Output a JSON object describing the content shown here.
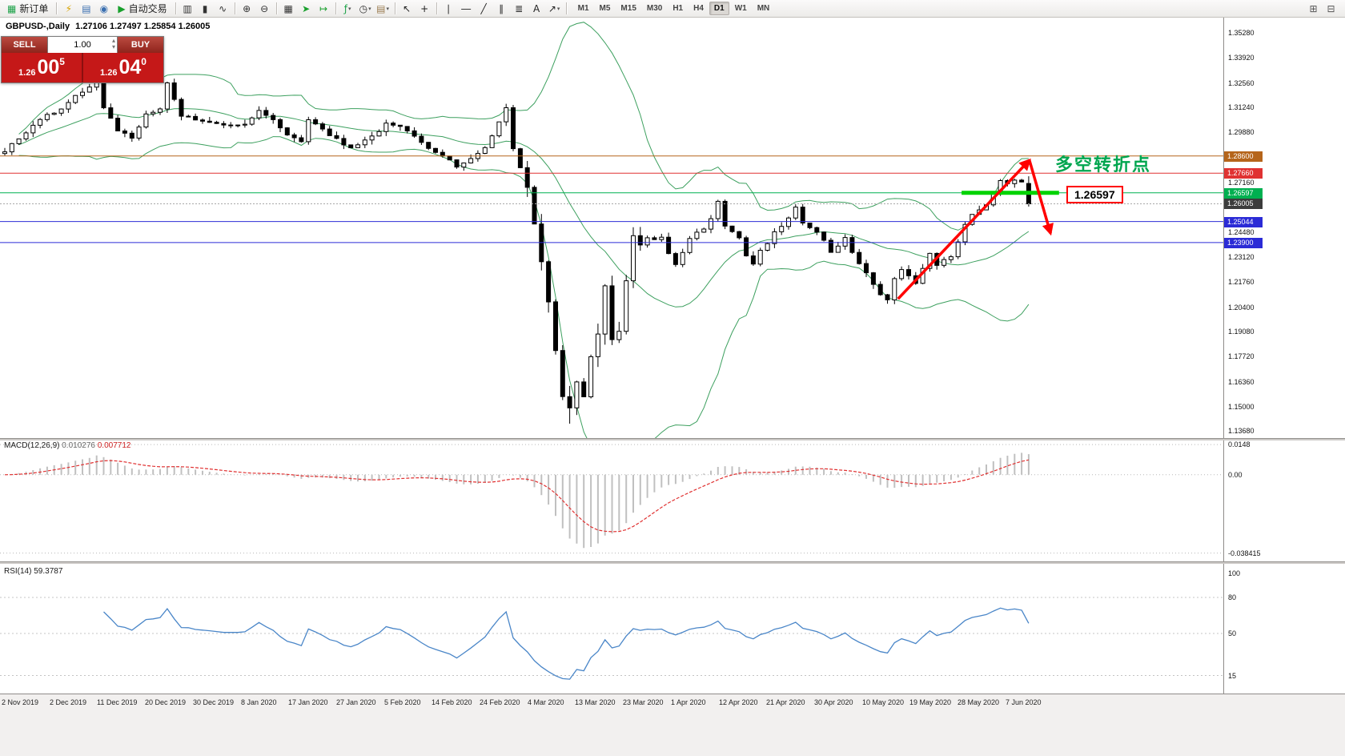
{
  "toolbar": {
    "items": [
      {
        "type": "btn",
        "name": "new-order-button",
        "glyph": "▦",
        "glyph_color": "#1fa34a",
        "label": "新订单"
      },
      {
        "type": "sep"
      },
      {
        "type": "icon",
        "name": "profiles-icon",
        "glyph": "⚡",
        "glyph_color": "#d9a400"
      },
      {
        "type": "icon",
        "name": "market-watch-icon",
        "glyph": "▤",
        "glyph_color": "#3a6fb0"
      },
      {
        "type": "icon",
        "name": "data-window-icon",
        "glyph": "◉",
        "glyph_color": "#3a6fb0"
      },
      {
        "type": "btn",
        "name": "autotrading-button",
        "glyph": "▶",
        "glyph_color": "#18a02c",
        "label": "自动交易"
      },
      {
        "type": "sep"
      },
      {
        "type": "icon",
        "name": "bar-chart-icon",
        "glyph": "▥",
        "glyph_color": "#333333"
      },
      {
        "type": "icon",
        "name": "candlestick-chart-icon",
        "glyph": "▮",
        "glyph_color": "#333333"
      },
      {
        "type": "icon",
        "name": "line-chart-icon",
        "glyph": "∿",
        "glyph_color": "#333333"
      },
      {
        "type": "sep"
      },
      {
        "type": "icon",
        "name": "zoom-in-icon",
        "glyph": "⊕",
        "glyph_color": "#333333"
      },
      {
        "type": "icon",
        "name": "zoom-out-icon",
        "glyph": "⊖",
        "glyph_color": "#333333"
      },
      {
        "type": "sep"
      },
      {
        "type": "icon",
        "name": "tile-windows-icon",
        "glyph": "▦",
        "glyph_color": "#333333"
      },
      {
        "type": "icon",
        "name": "auto-scroll-icon",
        "glyph": "➤",
        "glyph_color": "#18a02c"
      },
      {
        "type": "icon",
        "name": "chart-shift-icon",
        "glyph": "↦",
        "glyph_color": "#18a02c"
      },
      {
        "type": "sep"
      },
      {
        "type": "icon",
        "name": "indicators-icon",
        "glyph": "ƒ",
        "glyph_color": "#1fa34a",
        "caret": true
      },
      {
        "type": "icon",
        "name": "periods-icon",
        "glyph": "◷",
        "glyph_color": "#333333",
        "caret": true
      },
      {
        "type": "icon",
        "name": "templates-icon",
        "glyph": "▤",
        "glyph_color": "#9a7b4f",
        "caret": true
      },
      {
        "type": "sep"
      },
      {
        "type": "icon",
        "name": "cursor-icon",
        "glyph": "↖",
        "glyph_color": "#222222"
      },
      {
        "type": "icon",
        "name": "crosshair-icon",
        "glyph": "+",
        "glyph_color": "#222222"
      },
      {
        "type": "sep"
      },
      {
        "type": "icon",
        "name": "vertical-line-icon",
        "glyph": "∣",
        "glyph_color": "#222222"
      },
      {
        "type": "icon",
        "name": "horizontal-line-icon",
        "glyph": "―",
        "glyph_color": "#222222"
      },
      {
        "type": "icon",
        "name": "trendline-icon",
        "glyph": "╱",
        "glyph_color": "#222222"
      },
      {
        "type": "icon",
        "name": "equidistant-channel-icon",
        "glyph": "∥",
        "glyph_color": "#222222"
      },
      {
        "type": "icon",
        "name": "fibonacci-icon",
        "glyph": "≣",
        "glyph_color": "#222222"
      },
      {
        "type": "icon",
        "name": "text-icon",
        "glyph": "A",
        "glyph_color": "#222222"
      },
      {
        "type": "icon",
        "name": "arrows-icon",
        "glyph": "↗",
        "glyph_color": "#222222",
        "caret": true
      },
      {
        "type": "sep"
      }
    ],
    "timeframes": [
      "M1",
      "M5",
      "M15",
      "M30",
      "H1",
      "H4",
      "D1",
      "W1",
      "MN"
    ],
    "active_timeframe": "D1",
    "right_items": [
      {
        "name": "print-icon",
        "glyph": "⊞",
        "glyph_color": "#555555"
      },
      {
        "name": "print-preview-icon",
        "glyph": "⊟",
        "glyph_color": "#555555"
      }
    ]
  },
  "one_click": {
    "sell_label": "SELL",
    "buy_label": "BUY",
    "volume": "1.00",
    "bid_prefix": "1.26",
    "bid_big": "00",
    "bid_sup": "5",
    "ask_prefix": "1.26",
    "ask_big": "04",
    "ask_sup": "0"
  },
  "chart": {
    "title": "GBPUSD-,Daily",
    "ohlc": "1.27106 1.27497 1.25854 1.26005",
    "annotation_text": "多空转折点",
    "level_label": "1.26597",
    "price_axis_labels": [
      "1.35280",
      "1.33920",
      "1.32560",
      "1.31240",
      "1.29880",
      "1.27160",
      "1.24480",
      "1.23120",
      "1.21760",
      "1.20400",
      "1.19080",
      "1.17720",
      "1.16360",
      "1.15000",
      "1.13680"
    ],
    "price_tags": [
      {
        "text": "1.28600",
        "value": 1.286,
        "bg": "#b5651b",
        "line_color": "#b5651b",
        "line_dash": ""
      },
      {
        "text": "1.27660",
        "value": 1.2766,
        "bg": "#e03232",
        "line_color": "#e03232",
        "line_dash": ""
      },
      {
        "text": "1.26597",
        "value": 1.26597,
        "bg": "#00b050",
        "line_color": "#00b050",
        "line_dash": ""
      },
      {
        "text": "1.26005",
        "value": 1.26005,
        "bg": "#3c3c3c",
        "line_color": "#a8a8a8",
        "line_dash": "2,2"
      },
      {
        "text": "1.25044",
        "value": 1.25044,
        "bg": "#2b2bd6",
        "line_color": "#2b2bd6",
        "line_dash": ""
      },
      {
        "text": "1.23900",
        "value": 1.239,
        "bg": "#2b2bd6",
        "line_color": "#2b2bd6",
        "line_dash": ""
      }
    ],
    "date_labels": [
      "2 Nov 2019",
      "2 Dec 2019",
      "11 Dec 2019",
      "20 Dec 2019",
      "30 Dec 2019",
      "8 Jan 2020",
      "17 Jan 2020",
      "27 Jan 2020",
      "5 Feb 2020",
      "14 Feb 2020",
      "24 Feb 2020",
      "4 Mar 2020",
      "13 Mar 2020",
      "23 Mar 2020",
      "1 Apr 2020",
      "12 Apr 2020",
      "21 Apr 2020",
      "30 Apr 2020",
      "10 May 2020",
      "19 May 2020",
      "28 May 2020",
      "7 Jun 2020"
    ]
  },
  "macd": {
    "name": "MACD(12,26,9)",
    "value_main": "0.010276",
    "value_signal": "0.007712",
    "axis_labels": [
      {
        "text": "0.0148",
        "value": 0.0148
      },
      {
        "text": "0.00",
        "value": 0
      },
      {
        "text": "-0.038415",
        "value": -0.038415
      }
    ]
  },
  "rsi": {
    "name": "RSI(14)",
    "value": "59.3787",
    "axis_labels": [
      {
        "text": "100",
        "value": 100
      },
      {
        "text": "80",
        "value": 80
      },
      {
        "text": "50",
        "value": 50
      },
      {
        "text": "15",
        "value": 15
      }
    ]
  },
  "chart_data": {
    "type": "candlestick",
    "symbol": "GBPUSD",
    "period": "Daily",
    "bar_count": 146,
    "close_anchors": [
      [
        0,
        1.289
      ],
      [
        2,
        1.295
      ],
      [
        5,
        1.306
      ],
      [
        8,
        1.312
      ],
      [
        10,
        1.318
      ],
      [
        12,
        1.324
      ],
      [
        13,
        1.333
      ],
      [
        14,
        1.312
      ],
      [
        16,
        1.3
      ],
      [
        18,
        1.296
      ],
      [
        20,
        1.308
      ],
      [
        22,
        1.311
      ],
      [
        23,
        1.325
      ],
      [
        25,
        1.308
      ],
      [
        28,
        1.305
      ],
      [
        31,
        1.302
      ],
      [
        34,
        1.303
      ],
      [
        36,
        1.31
      ],
      [
        38,
        1.306
      ],
      [
        40,
        1.298
      ],
      [
        42,
        1.293
      ],
      [
        43,
        1.305
      ],
      [
        45,
        1.3
      ],
      [
        47,
        1.295
      ],
      [
        49,
        1.29
      ],
      [
        52,
        1.296
      ],
      [
        54,
        1.304
      ],
      [
        56,
        1.302
      ],
      [
        58,
        1.296
      ],
      [
        60,
        1.29
      ],
      [
        62,
        1.286
      ],
      [
        64,
        1.28
      ],
      [
        66,
        1.285
      ],
      [
        68,
        1.29
      ],
      [
        70,
        1.305
      ],
      [
        71,
        1.312
      ],
      [
        72,
        1.29
      ],
      [
        73,
        1.28
      ],
      [
        74,
        1.268
      ],
      [
        75,
        1.251
      ],
      [
        76,
        1.228
      ],
      [
        77,
        1.208
      ],
      [
        78,
        1.18
      ],
      [
        79,
        1.155
      ],
      [
        80,
        1.148
      ],
      [
        81,
        1.162
      ],
      [
        82,
        1.157
      ],
      [
        83,
        1.177
      ],
      [
        84,
        1.19
      ],
      [
        85,
        1.214
      ],
      [
        86,
        1.188
      ],
      [
        87,
        1.193
      ],
      [
        88,
        1.218
      ],
      [
        89,
        1.243
      ],
      [
        90,
        1.236
      ],
      [
        91,
        1.241
      ],
      [
        92,
        1.239
      ],
      [
        93,
        1.242
      ],
      [
        94,
        1.233
      ],
      [
        95,
        1.227
      ],
      [
        96,
        1.234
      ],
      [
        97,
        1.241
      ],
      [
        98,
        1.245
      ],
      [
        99,
        1.247
      ],
      [
        100,
        1.252
      ],
      [
        101,
        1.262
      ],
      [
        102,
        1.248
      ],
      [
        104,
        1.242
      ],
      [
        105,
        1.232
      ],
      [
        106,
        1.228
      ],
      [
        107,
        1.234
      ],
      [
        109,
        1.244
      ],
      [
        111,
        1.253
      ],
      [
        112,
        1.259
      ],
      [
        113,
        1.249
      ],
      [
        115,
        1.245
      ],
      [
        117,
        1.234
      ],
      [
        119,
        1.241
      ],
      [
        120,
        1.234
      ],
      [
        122,
        1.223
      ],
      [
        124,
        1.211
      ],
      [
        125,
        1.208
      ],
      [
        126,
        1.219
      ],
      [
        127,
        1.224
      ],
      [
        129,
        1.217
      ],
      [
        131,
        1.234
      ],
      [
        132,
        1.226
      ],
      [
        134,
        1.232
      ],
      [
        136,
        1.248
      ],
      [
        137,
        1.255
      ],
      [
        139,
        1.26
      ],
      [
        140,
        1.267
      ],
      [
        141,
        1.273
      ],
      [
        142,
        1.271
      ],
      [
        143,
        1.2735
      ],
      [
        144,
        1.2715
      ],
      [
        145,
        1.26005
      ]
    ],
    "last_bar": {
      "open": 1.27106,
      "high": 1.27497,
      "low": 1.25854,
      "close": 1.26005
    },
    "force_low": {
      "bar": 80,
      "price": 1.1408
    },
    "indicators": {
      "bollinger": {
        "period": 20,
        "deviation": 2,
        "color": "#3da05f"
      },
      "macd": {
        "fast": 12,
        "slow": 26,
        "signal": 9,
        "histogram_color": "#c0c0c0",
        "signal_color": "#e03030"
      },
      "rsi": {
        "period": 14,
        "color": "#4a86c8"
      }
    },
    "drawings": {
      "up_arrow": {
        "from_bar": 126.5,
        "from_price": 1.2085,
        "to_bar": 145.1,
        "to_price": 1.2837,
        "color": "#ff0000"
      },
      "down_arrow": {
        "from_bar": 145.1,
        "from_price": 1.2837,
        "to_bar": 148.1,
        "to_price": 1.244,
        "color": "#ff0000"
      },
      "thick_level_line": {
        "price": 1.26597,
        "from_bar": 135.5,
        "to_bar": 149.3,
        "color": "#00d300"
      }
    }
  }
}
